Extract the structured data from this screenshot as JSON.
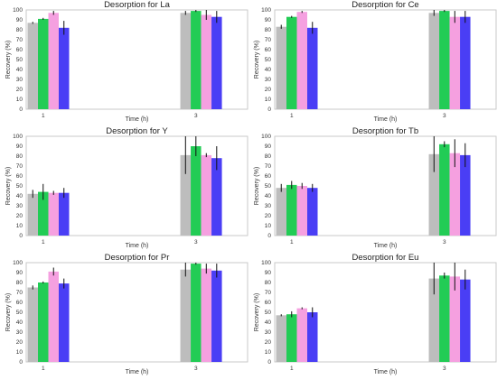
{
  "chart_data": [
    {
      "type": "bar",
      "title": "Desorption for La",
      "xlabel": "Time (h)",
      "ylabel": "Recovery (%)",
      "categories": [
        "1",
        "3"
      ],
      "ylim": [
        0,
        100
      ],
      "yticks": [
        0,
        10,
        20,
        30,
        40,
        50,
        60,
        70,
        80,
        90,
        100
      ],
      "grid": false,
      "series": [
        {
          "color": "#bdbdbd",
          "values": [
            87,
            97
          ],
          "errors": [
            1,
            2
          ]
        },
        {
          "color": "#22cc55",
          "values": [
            91,
            99
          ],
          "errors": [
            1,
            1
          ]
        },
        {
          "color": "#f5a0e0",
          "values": [
            97,
            95
          ],
          "errors": [
            2,
            5
          ]
        },
        {
          "color": "#4a3ef5",
          "values": [
            82,
            93
          ],
          "errors": [
            7,
            6
          ]
        }
      ]
    },
    {
      "type": "bar",
      "title": "Desorption for Ce",
      "xlabel": "Time (h)",
      "ylabel": "Recovery (%)",
      "categories": [
        "1",
        "3"
      ],
      "ylim": [
        0,
        100
      ],
      "yticks": [
        0,
        10,
        20,
        30,
        40,
        50,
        60,
        70,
        80,
        90,
        100
      ],
      "grid": false,
      "series": [
        {
          "color": "#bdbdbd",
          "values": [
            83,
            97
          ],
          "errors": [
            2,
            3
          ]
        },
        {
          "color": "#22cc55",
          "values": [
            93,
            99
          ],
          "errors": [
            1,
            1
          ]
        },
        {
          "color": "#f5a0e0",
          "values": [
            98,
            93
          ],
          "errors": [
            1,
            6
          ]
        },
        {
          "color": "#4a3ef5",
          "values": [
            82,
            93
          ],
          "errors": [
            6,
            6
          ]
        }
      ]
    },
    {
      "type": "bar",
      "title": "Desorption for Y",
      "xlabel": "Time (h)",
      "ylabel": "Recovery (%)",
      "categories": [
        "1",
        "3"
      ],
      "ylim": [
        0,
        100
      ],
      "yticks": [
        0,
        10,
        20,
        30,
        40,
        50,
        60,
        70,
        80,
        90,
        100
      ],
      "grid": false,
      "series": [
        {
          "color": "#bdbdbd",
          "values": [
            42,
            81
          ],
          "errors": [
            4,
            19
          ]
        },
        {
          "color": "#22cc55",
          "values": [
            44,
            90
          ],
          "errors": [
            8,
            10
          ]
        },
        {
          "color": "#f5a0e0",
          "values": [
            43,
            81
          ],
          "errors": [
            2,
            2
          ]
        },
        {
          "color": "#4a3ef5",
          "values": [
            43,
            78
          ],
          "errors": [
            5,
            12
          ]
        }
      ]
    },
    {
      "type": "bar",
      "title": "Desorption for Tb",
      "xlabel": "Time (h)",
      "ylabel": "Recovery (%)",
      "categories": [
        "1",
        "3"
      ],
      "ylim": [
        0,
        100
      ],
      "yticks": [
        0,
        10,
        20,
        30,
        40,
        50,
        60,
        70,
        80,
        90,
        100
      ],
      "grid": false,
      "series": [
        {
          "color": "#bdbdbd",
          "values": [
            48,
            82
          ],
          "errors": [
            4,
            18
          ]
        },
        {
          "color": "#22cc55",
          "values": [
            51,
            92
          ],
          "errors": [
            4,
            3
          ]
        },
        {
          "color": "#f5a0e0",
          "values": [
            50,
            83
          ],
          "errors": [
            3,
            14
          ]
        },
        {
          "color": "#4a3ef5",
          "values": [
            48,
            81
          ],
          "errors": [
            4,
            12
          ]
        }
      ]
    },
    {
      "type": "bar",
      "title": "Desorption for Pr",
      "xlabel": "Time (h)",
      "ylabel": "Recovery (%)",
      "categories": [
        "1",
        "3"
      ],
      "ylim": [
        0,
        100
      ],
      "yticks": [
        0,
        10,
        20,
        30,
        40,
        50,
        60,
        70,
        80,
        90,
        100
      ],
      "grid": false,
      "series": [
        {
          "color": "#bdbdbd",
          "values": [
            75,
            93
          ],
          "errors": [
            2,
            7
          ]
        },
        {
          "color": "#22cc55",
          "values": [
            80,
            99
          ],
          "errors": [
            1,
            1
          ]
        },
        {
          "color": "#f5a0e0",
          "values": [
            91,
            94
          ],
          "errors": [
            4,
            5
          ]
        },
        {
          "color": "#4a3ef5",
          "values": [
            79,
            92
          ],
          "errors": [
            5,
            7
          ]
        }
      ]
    },
    {
      "type": "bar",
      "title": "Desorption for Eu",
      "xlabel": "Time (h)",
      "ylabel": "Recovery (%)",
      "categories": [
        "1",
        "3"
      ],
      "ylim": [
        0,
        100
      ],
      "yticks": [
        0,
        10,
        20,
        30,
        40,
        50,
        60,
        70,
        80,
        90,
        100
      ],
      "grid": false,
      "series": [
        {
          "color": "#bdbdbd",
          "values": [
            47,
            84
          ],
          "errors": [
            1,
            16
          ]
        },
        {
          "color": "#22cc55",
          "values": [
            48,
            87
          ],
          "errors": [
            3,
            3
          ]
        },
        {
          "color": "#f5a0e0",
          "values": [
            54,
            86
          ],
          "errors": [
            1,
            14
          ]
        },
        {
          "color": "#4a3ef5",
          "values": [
            50,
            83
          ],
          "errors": [
            5,
            10
          ]
        }
      ]
    }
  ]
}
